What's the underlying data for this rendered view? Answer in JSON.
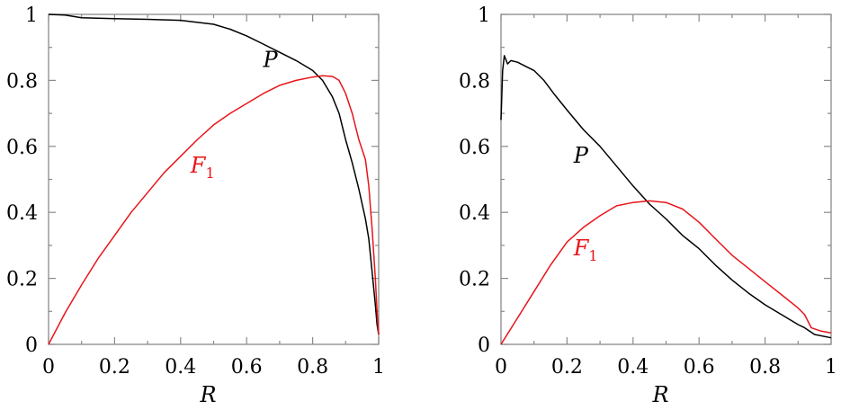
{
  "chart_data": [
    {
      "type": "line",
      "xlabel": "R",
      "ylabel": "",
      "xlim": [
        0,
        1
      ],
      "ylim": [
        0,
        1
      ],
      "xticks": [
        "0",
        "0.2",
        "0.4",
        "0.6",
        "0.8",
        "1"
      ],
      "yticks": [
        "0",
        "0.2",
        "0.4",
        "0.6",
        "0.8",
        "1"
      ],
      "grid": false,
      "series": [
        {
          "name": "P",
          "color": "#000000",
          "label_pos": [
            0.65,
            0.84
          ],
          "points": [
            [
              0.0,
              1.0
            ],
            [
              0.05,
              0.998
            ],
            [
              0.1,
              0.99
            ],
            [
              0.2,
              0.987
            ],
            [
              0.3,
              0.985
            ],
            [
              0.4,
              0.982
            ],
            [
              0.5,
              0.97
            ],
            [
              0.55,
              0.955
            ],
            [
              0.6,
              0.935
            ],
            [
              0.65,
              0.91
            ],
            [
              0.7,
              0.885
            ],
            [
              0.75,
              0.86
            ],
            [
              0.8,
              0.83
            ],
            [
              0.83,
              0.8
            ],
            [
              0.86,
              0.75
            ],
            [
              0.88,
              0.7
            ],
            [
              0.9,
              0.62
            ],
            [
              0.92,
              0.55
            ],
            [
              0.94,
              0.47
            ],
            [
              0.96,
              0.38
            ],
            [
              0.97,
              0.32
            ],
            [
              0.98,
              0.22
            ],
            [
              0.99,
              0.12
            ],
            [
              0.995,
              0.06
            ],
            [
              1.0,
              0.03
            ]
          ]
        },
        {
          "name": "F1",
          "label_main": "F",
          "label_sub": "1",
          "color": "#e8141a",
          "label_pos": [
            0.43,
            0.52
          ],
          "points": [
            [
              0.0,
              0.0
            ],
            [
              0.05,
              0.095
            ],
            [
              0.1,
              0.18
            ],
            [
              0.15,
              0.26
            ],
            [
              0.2,
              0.33
            ],
            [
              0.25,
              0.4
            ],
            [
              0.3,
              0.46
            ],
            [
              0.35,
              0.52
            ],
            [
              0.4,
              0.57
            ],
            [
              0.45,
              0.62
            ],
            [
              0.5,
              0.665
            ],
            [
              0.55,
              0.7
            ],
            [
              0.6,
              0.73
            ],
            [
              0.65,
              0.76
            ],
            [
              0.7,
              0.785
            ],
            [
              0.75,
              0.8
            ],
            [
              0.8,
              0.81
            ],
            [
              0.83,
              0.814
            ],
            [
              0.86,
              0.812
            ],
            [
              0.88,
              0.8
            ],
            [
              0.9,
              0.76
            ],
            [
              0.92,
              0.7
            ],
            [
              0.94,
              0.62
            ],
            [
              0.96,
              0.56
            ],
            [
              0.97,
              0.48
            ],
            [
              0.98,
              0.35
            ],
            [
              0.99,
              0.2
            ],
            [
              0.995,
              0.1
            ],
            [
              1.0,
              0.03
            ]
          ]
        }
      ]
    },
    {
      "type": "line",
      "xlabel": "R",
      "ylabel": "",
      "xlim": [
        0,
        1
      ],
      "ylim": [
        0,
        1
      ],
      "xticks": [
        "0",
        "0.2",
        "0.4",
        "0.6",
        "0.8",
        "1"
      ],
      "yticks": [
        "0",
        "0.2",
        "0.4",
        "0.6",
        "0.8",
        "1"
      ],
      "grid": false,
      "series": [
        {
          "name": "P",
          "color": "#000000",
          "label_pos": [
            0.22,
            0.55
          ],
          "points": [
            [
              0.0,
              0.68
            ],
            [
              0.005,
              0.83
            ],
            [
              0.01,
              0.875
            ],
            [
              0.02,
              0.85
            ],
            [
              0.03,
              0.86
            ],
            [
              0.05,
              0.855
            ],
            [
              0.07,
              0.845
            ],
            [
              0.1,
              0.83
            ],
            [
              0.13,
              0.8
            ],
            [
              0.16,
              0.76
            ],
            [
              0.2,
              0.71
            ],
            [
              0.25,
              0.65
            ],
            [
              0.3,
              0.6
            ],
            [
              0.35,
              0.54
            ],
            [
              0.4,
              0.48
            ],
            [
              0.45,
              0.425
            ],
            [
              0.5,
              0.38
            ],
            [
              0.55,
              0.33
            ],
            [
              0.6,
              0.29
            ],
            [
              0.65,
              0.24
            ],
            [
              0.7,
              0.195
            ],
            [
              0.75,
              0.155
            ],
            [
              0.8,
              0.12
            ],
            [
              0.85,
              0.09
            ],
            [
              0.9,
              0.06
            ],
            [
              0.92,
              0.05
            ],
            [
              0.95,
              0.03
            ],
            [
              1.0,
              0.02
            ]
          ]
        },
        {
          "name": "F1",
          "label_main": "F",
          "label_sub": "1",
          "color": "#e8141a",
          "label_pos": [
            0.22,
            0.27
          ],
          "points": [
            [
              0.0,
              0.0
            ],
            [
              0.05,
              0.08
            ],
            [
              0.1,
              0.16
            ],
            [
              0.15,
              0.24
            ],
            [
              0.2,
              0.31
            ],
            [
              0.25,
              0.355
            ],
            [
              0.3,
              0.39
            ],
            [
              0.35,
              0.42
            ],
            [
              0.4,
              0.43
            ],
            [
              0.45,
              0.435
            ],
            [
              0.5,
              0.43
            ],
            [
              0.55,
              0.41
            ],
            [
              0.6,
              0.37
            ],
            [
              0.65,
              0.32
            ],
            [
              0.7,
              0.27
            ],
            [
              0.75,
              0.23
            ],
            [
              0.8,
              0.19
            ],
            [
              0.85,
              0.15
            ],
            [
              0.9,
              0.11
            ],
            [
              0.92,
              0.09
            ],
            [
              0.94,
              0.05
            ],
            [
              0.97,
              0.04
            ],
            [
              1.0,
              0.035
            ]
          ]
        }
      ]
    }
  ]
}
